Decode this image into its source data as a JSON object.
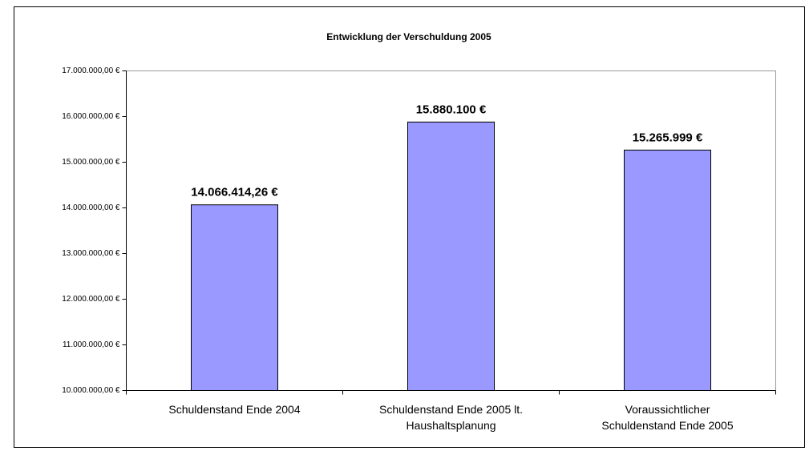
{
  "chart_data": {
    "type": "bar",
    "title": "Entwicklung der Verschuldung 2005",
    "categories": [
      [
        "Schuldenstand Ende 2004"
      ],
      [
        "Schuldenstand Ende 2005 lt.",
        "Haushaltsplanung"
      ],
      [
        "Voraussichtlicher",
        "Schuldenstand Ende 2005"
      ]
    ],
    "values": [
      14066414.26,
      15880100,
      15265999
    ],
    "value_labels": [
      "14.066.414,26 €",
      "15.880.100 €",
      "15.265.999 €"
    ],
    "color": "#9999ff",
    "ylim": [
      10000000,
      17000000
    ],
    "yticks": [
      {
        "value": 10000000,
        "label": "10.000.000,00 €"
      },
      {
        "value": 11000000,
        "label": "11.000.000,00 €"
      },
      {
        "value": 12000000,
        "label": "12.000.000,00 €"
      },
      {
        "value": 13000000,
        "label": "13.000.000,00 €"
      },
      {
        "value": 14000000,
        "label": "14.000.000,00 €"
      },
      {
        "value": 15000000,
        "label": "15.000.000,00 €"
      },
      {
        "value": 16000000,
        "label": "16.000.000,00 €"
      },
      {
        "value": 17000000,
        "label": "17.000.000,00 €"
      }
    ],
    "grid": false
  }
}
